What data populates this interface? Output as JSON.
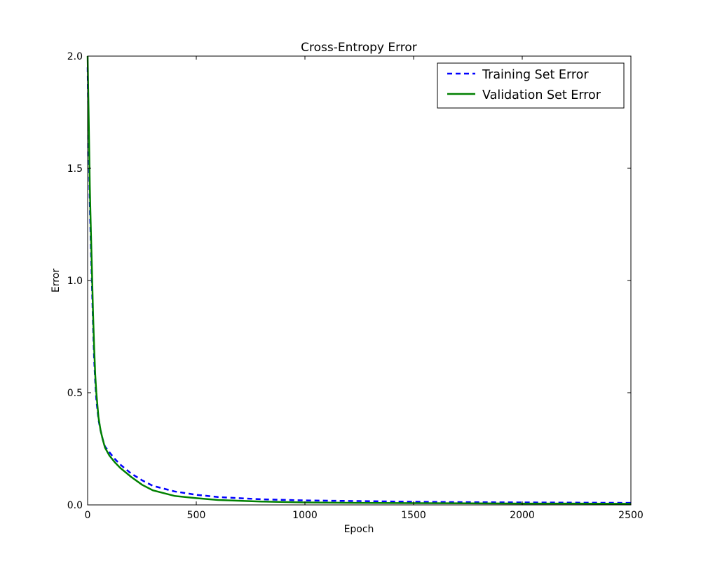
{
  "chart_data": {
    "type": "line",
    "title": "Cross-Entropy Error",
    "xlabel": "Epoch",
    "ylabel": "Error",
    "xlim": [
      0,
      2500
    ],
    "ylim": [
      0.0,
      2.0
    ],
    "x_ticks": [
      0,
      500,
      1000,
      1500,
      2000,
      2500
    ],
    "x_tick_labels": [
      "0",
      "500",
      "1000",
      "1500",
      "2000",
      "2500"
    ],
    "y_ticks": [
      0.0,
      0.5,
      1.0,
      1.5,
      2.0
    ],
    "y_tick_labels": [
      "0.0",
      "0.5",
      "1.0",
      "1.5",
      "2.0"
    ],
    "grid": false,
    "legend_position": "top-right",
    "series": [
      {
        "name": "Training Set Error",
        "color": "#0000ff",
        "style": "dashed",
        "x": [
          0,
          5,
          10,
          15,
          20,
          25,
          30,
          35,
          40,
          50,
          60,
          70,
          80,
          100,
          125,
          150,
          200,
          250,
          300,
          400,
          500,
          600,
          800,
          1000,
          1250,
          1500,
          1750,
          2000,
          2250,
          2500
        ],
        "y": [
          1.95,
          1.6,
          1.35,
          1.15,
          0.98,
          0.8,
          0.65,
          0.55,
          0.47,
          0.38,
          0.33,
          0.29,
          0.26,
          0.235,
          0.205,
          0.18,
          0.14,
          0.11,
          0.085,
          0.06,
          0.045,
          0.035,
          0.025,
          0.02,
          0.017,
          0.014,
          0.012,
          0.011,
          0.01,
          0.009
        ]
      },
      {
        "name": "Validation Set Error",
        "color": "#008000",
        "style": "solid",
        "x": [
          0,
          5,
          10,
          15,
          20,
          25,
          30,
          35,
          40,
          50,
          60,
          70,
          80,
          100,
          125,
          150,
          200,
          250,
          300,
          400,
          500,
          600,
          800,
          1000,
          1250,
          1500,
          1750,
          2000,
          2250,
          2500
        ],
        "y": [
          2.0,
          1.72,
          1.42,
          1.22,
          1.04,
          0.85,
          0.7,
          0.58,
          0.5,
          0.39,
          0.33,
          0.29,
          0.255,
          0.22,
          0.19,
          0.165,
          0.125,
          0.09,
          0.065,
          0.04,
          0.03,
          0.022,
          0.015,
          0.011,
          0.009,
          0.008,
          0.007,
          0.006,
          0.006,
          0.005
        ]
      }
    ]
  }
}
